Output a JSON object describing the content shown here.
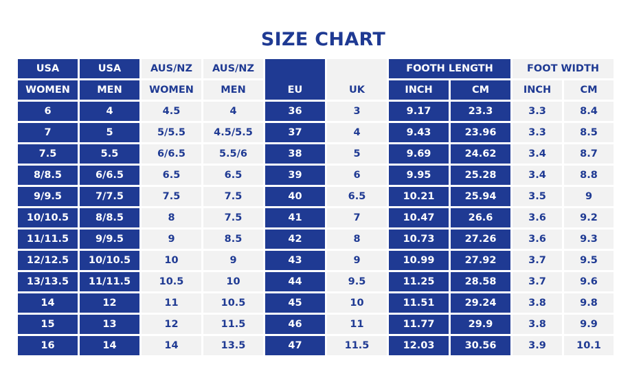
{
  "title": "SIZE CHART",
  "header": {
    "usa_women_top": "USA",
    "usa_women_bottom": "WOMEN",
    "usa_men_top": "USA",
    "usa_men_bottom": "MEN",
    "ausnz_women_top": "AUS/NZ",
    "ausnz_women_bottom": "WOMEN",
    "ausnz_men_top": "AUS/NZ",
    "ausnz_men_bottom": "MEN",
    "eu": "EU",
    "uk": "UK",
    "foot_length": "FOOTH LENGTH",
    "foot_length_inch": "INCH",
    "foot_length_cm": "CM",
    "foot_width": "FOOT WIDTH",
    "foot_width_inch": "INCH",
    "foot_width_cm": "CM"
  },
  "rows": [
    [
      "6",
      "4",
      "4.5",
      "4",
      "36",
      "3",
      "9.17",
      "23.3",
      "3.3",
      "8.4"
    ],
    [
      "7",
      "5",
      "5/5.5",
      "4.5/5.5",
      "37",
      "4",
      "9.43",
      "23.96",
      "3.3",
      "8.5"
    ],
    [
      "7.5",
      "5.5",
      "6/6.5",
      "5.5/6",
      "38",
      "5",
      "9.69",
      "24.62",
      "3.4",
      "8.7"
    ],
    [
      "8/8.5",
      "6/6.5",
      "6.5",
      "6.5",
      "39",
      "6",
      "9.95",
      "25.28",
      "3.4",
      "8.8"
    ],
    [
      "9/9.5",
      "7/7.5",
      "7.5",
      "7.5",
      "40",
      "6.5",
      "10.21",
      "25.94",
      "3.5",
      "9"
    ],
    [
      "10/10.5",
      "8/8.5",
      "8",
      "7.5",
      "41",
      "7",
      "10.47",
      "26.6",
      "3.6",
      "9.2"
    ],
    [
      "11/11.5",
      "9/9.5",
      "9",
      "8.5",
      "42",
      "8",
      "10.73",
      "27.26",
      "3.6",
      "9.3"
    ],
    [
      "12/12.5",
      "10/10.5",
      "10",
      "9",
      "43",
      "9",
      "10.99",
      "27.92",
      "3.7",
      "9.5"
    ],
    [
      "13/13.5",
      "11/11.5",
      "10.5",
      "10",
      "44",
      "9.5",
      "11.25",
      "28.58",
      "3.7",
      "9.6"
    ],
    [
      "14",
      "12",
      "11",
      "10.5",
      "45",
      "10",
      "11.51",
      "29.24",
      "3.8",
      "9.8"
    ],
    [
      "15",
      "13",
      "12",
      "11.5",
      "46",
      "11",
      "11.77",
      "29.9",
      "3.8",
      "9.9"
    ],
    [
      "16",
      "14",
      "14",
      "13.5",
      "47",
      "11.5",
      "12.03",
      "30.56",
      "3.9",
      "10.1"
    ]
  ],
  "colors": {
    "dark": "#1f3a93",
    "light": "#f2f2f2",
    "text_on_dark": "#ffffff",
    "text_on_light": "#1f3a93"
  }
}
